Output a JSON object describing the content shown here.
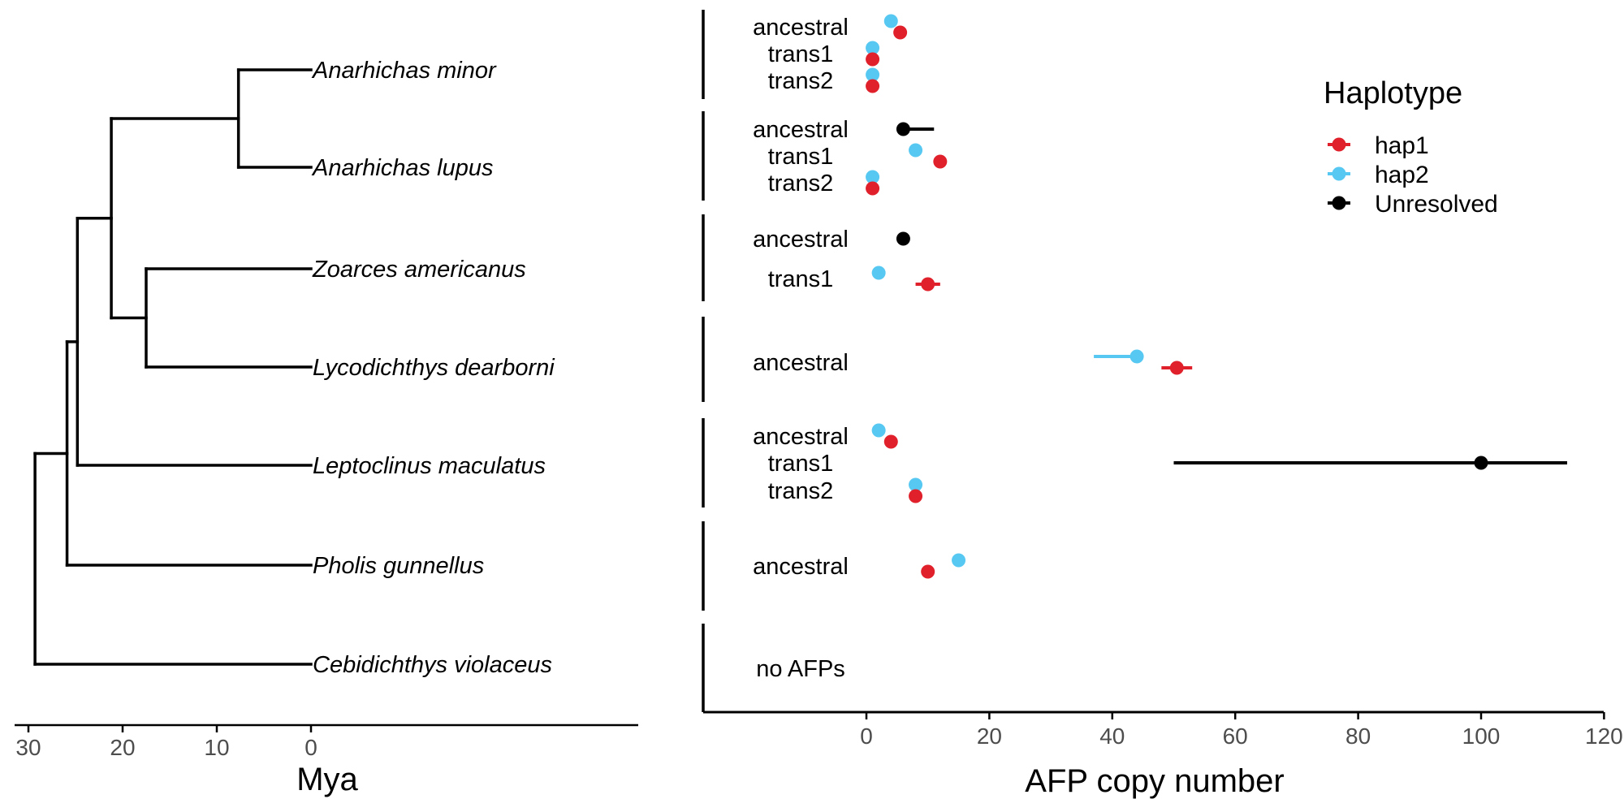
{
  "chart_data": [
    {
      "type": "tree",
      "xlabel": "Mya",
      "xticks": [
        30,
        20,
        10,
        0
      ],
      "taxa": [
        "Anarhichas minor",
        "Anarhichas lupus",
        "Zoarces americanus",
        "Lycodichthys dearborni",
        "Leptoclinus maculatus",
        "Pholis gunnellus",
        "Cebidichthys violaceus"
      ],
      "node_ages_mya": {
        "anarhichas": 7.7,
        "anarhichas_plus_zoarcids": 21.2,
        "zoarcids": 17.5,
        "plus_leptoclinus": 24.8,
        "plus_pholis": 25.9,
        "root": 29.3
      }
    },
    {
      "type": "scatter",
      "xlabel": "AFP copy number",
      "xlim": [
        0,
        120
      ],
      "xticks": [
        0,
        20,
        40,
        60,
        80,
        100,
        120
      ],
      "legend": {
        "title": "Haplotype",
        "position": "top-right",
        "items": [
          {
            "name": "hap1",
            "color": "#e0202a"
          },
          {
            "name": "hap2",
            "color": "#56c8f2"
          },
          {
            "name": "Unresolved",
            "color": "#000000"
          }
        ]
      },
      "groups": [
        {
          "species": "Anarhichas minor",
          "rows": [
            "ancestral",
            "trans1",
            "trans2"
          ],
          "points": [
            {
              "row": "ancestral",
              "haplotype": "hap2",
              "value": 4
            },
            {
              "row": "ancestral",
              "haplotype": "hap1",
              "value": 5.5
            },
            {
              "row": "trans1",
              "haplotype": "hap2",
              "value": 1
            },
            {
              "row": "trans1",
              "haplotype": "hap1",
              "value": 1
            },
            {
              "row": "trans2",
              "haplotype": "hap2",
              "value": 1
            },
            {
              "row": "trans2",
              "haplotype": "hap1",
              "value": 1
            }
          ]
        },
        {
          "species": "Anarhichas lupus",
          "rows": [
            "ancestral",
            "trans1",
            "trans2"
          ],
          "points": [
            {
              "row": "ancestral",
              "haplotype": "Unresolved",
              "value": 6,
              "range": [
                6,
                11
              ]
            },
            {
              "row": "trans1",
              "haplotype": "hap2",
              "value": 8
            },
            {
              "row": "trans1",
              "haplotype": "hap1",
              "value": 12
            },
            {
              "row": "trans2",
              "haplotype": "hap2",
              "value": 1
            },
            {
              "row": "trans2",
              "haplotype": "hap1",
              "value": 1
            }
          ]
        },
        {
          "species": "Zoarces americanus",
          "rows": [
            "ancestral",
            "trans1"
          ],
          "points": [
            {
              "row": "ancestral",
              "haplotype": "Unresolved",
              "value": 6
            },
            {
              "row": "trans1",
              "haplotype": "hap2",
              "value": 2
            },
            {
              "row": "trans1",
              "haplotype": "hap1",
              "value": 10,
              "range": [
                8,
                12
              ]
            }
          ]
        },
        {
          "species": "Lycodichthys dearborni",
          "rows": [
            "ancestral"
          ],
          "points": [
            {
              "row": "ancestral",
              "haplotype": "hap2",
              "value": 44,
              "range": [
                37,
                44
              ]
            },
            {
              "row": "ancestral",
              "haplotype": "hap1",
              "value": 50.5,
              "range": [
                48,
                53
              ]
            }
          ]
        },
        {
          "species": "Leptoclinus maculatus",
          "rows": [
            "ancestral",
            "trans1",
            "trans2"
          ],
          "points": [
            {
              "row": "ancestral",
              "haplotype": "hap2",
              "value": 2
            },
            {
              "row": "ancestral",
              "haplotype": "hap1",
              "value": 4
            },
            {
              "row": "trans1",
              "haplotype": "Unresolved",
              "value": 100,
              "range": [
                50,
                114
              ]
            },
            {
              "row": "trans2",
              "haplotype": "hap2",
              "value": 8
            },
            {
              "row": "trans2",
              "haplotype": "hap1",
              "value": 8
            }
          ]
        },
        {
          "species": "Pholis gunnellus",
          "rows": [
            "ancestral"
          ],
          "points": [
            {
              "row": "ancestral",
              "haplotype": "hap2",
              "value": 15
            },
            {
              "row": "ancestral",
              "haplotype": "hap1",
              "value": 10
            }
          ]
        },
        {
          "species": "Cebidichthys violaceus",
          "rows": [
            "no AFPs"
          ],
          "points": []
        }
      ]
    }
  ]
}
